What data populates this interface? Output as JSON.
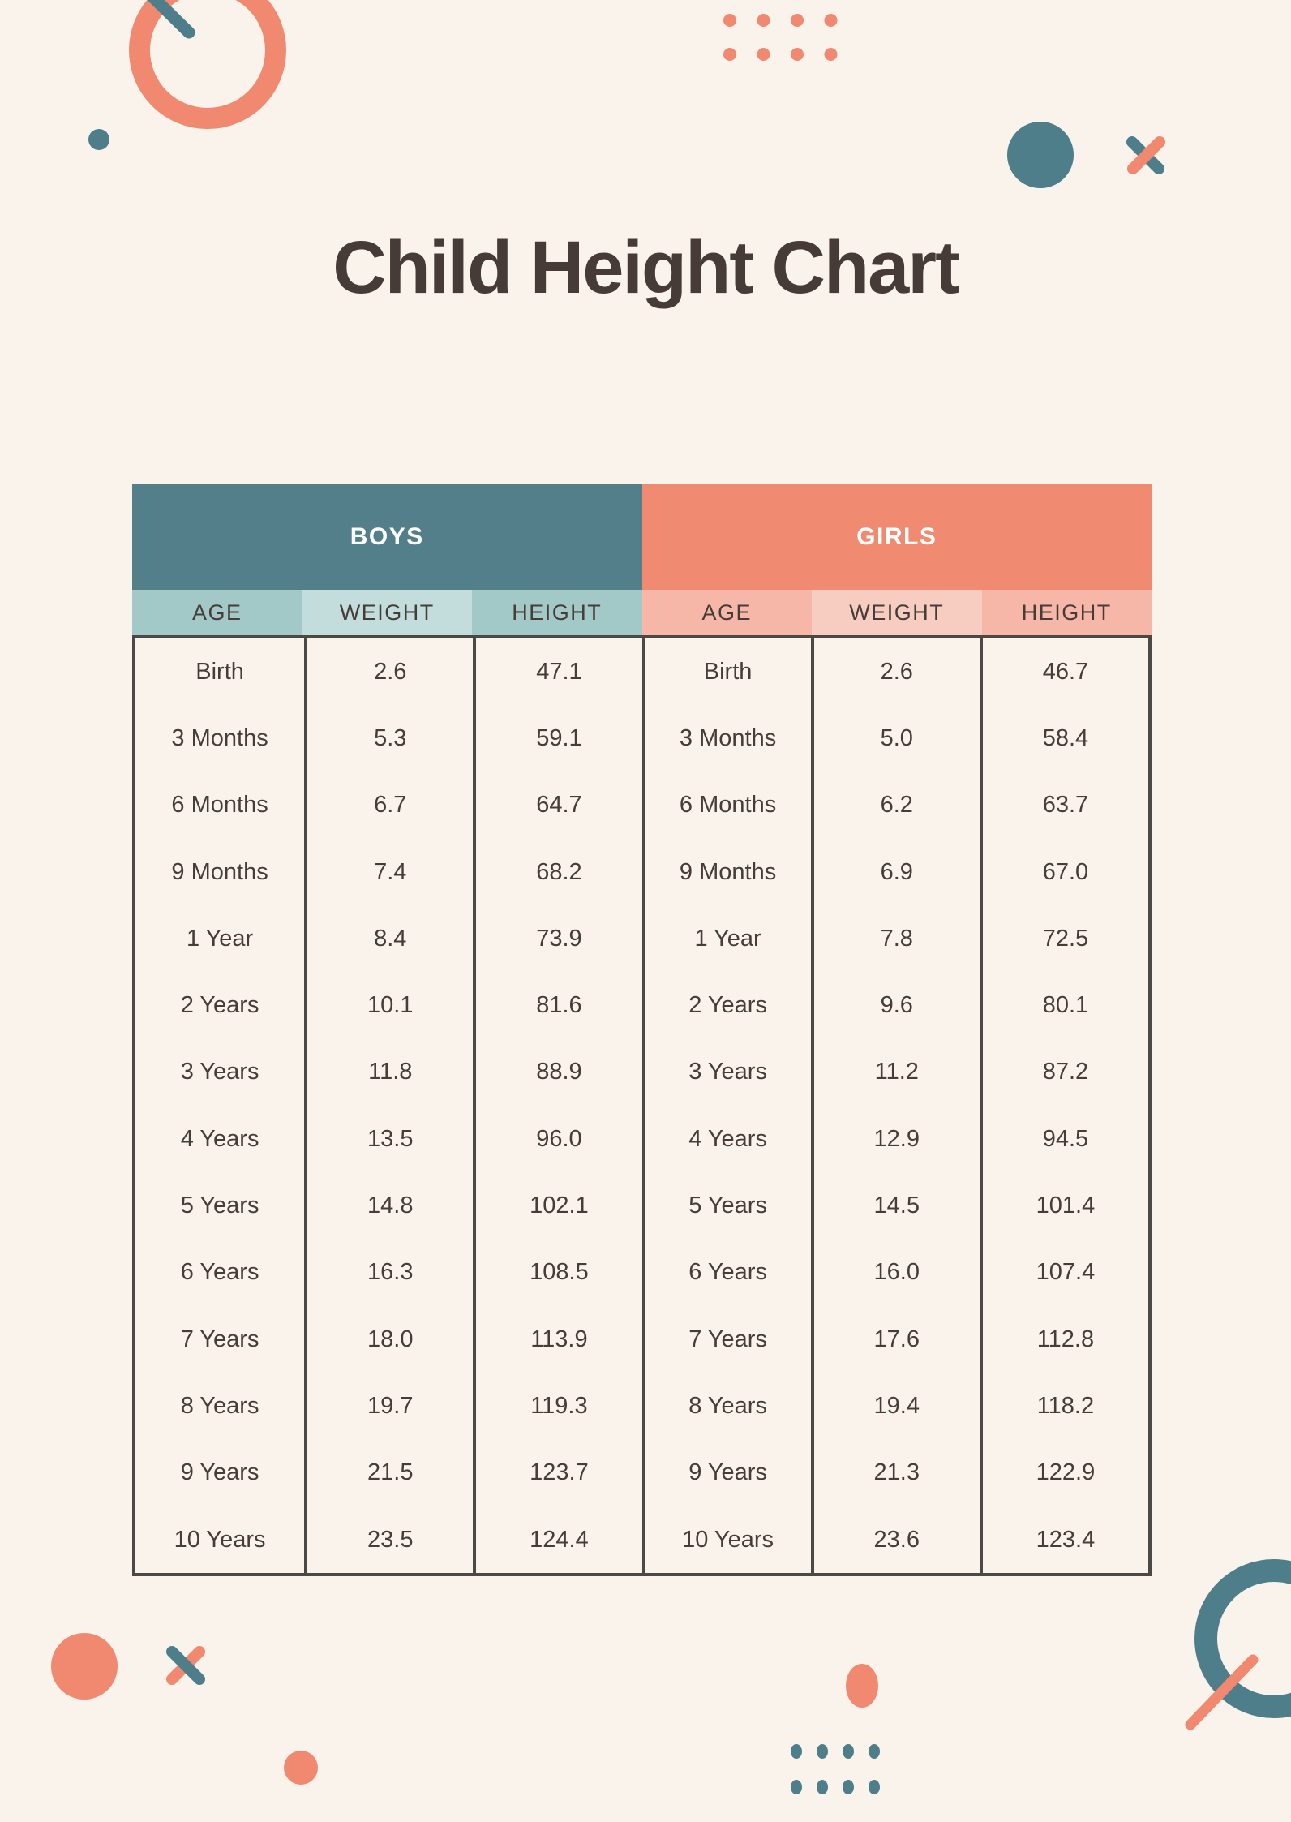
{
  "page_title": "Child Height Chart",
  "chart_data": {
    "type": "table",
    "title": "Child Height Chart",
    "groups": [
      "BOYS",
      "GIRLS"
    ],
    "columns": [
      "AGE",
      "WEIGHT",
      "HEIGHT"
    ],
    "boys_rows": [
      [
        "Birth",
        "2.6",
        "47.1"
      ],
      [
        "3 Months",
        "5.3",
        "59.1"
      ],
      [
        "6 Months",
        "6.7",
        "64.7"
      ],
      [
        "9 Months",
        "7.4",
        "68.2"
      ],
      [
        "1 Year",
        "8.4",
        "73.9"
      ],
      [
        "2 Years",
        "10.1",
        "81.6"
      ],
      [
        "3 Years",
        "11.8",
        "88.9"
      ],
      [
        "4 Years",
        "13.5",
        "96.0"
      ],
      [
        "5 Years",
        "14.8",
        "102.1"
      ],
      [
        "6 Years",
        "16.3",
        "108.5"
      ],
      [
        "7 Years",
        "18.0",
        "113.9"
      ],
      [
        "8 Years",
        "19.7",
        "119.3"
      ],
      [
        "9 Years",
        "21.5",
        "123.7"
      ],
      [
        "10 Years",
        "23.5",
        "124.4"
      ]
    ],
    "girls_rows": [
      [
        "Birth",
        "2.6",
        "46.7"
      ],
      [
        "3 Months",
        "5.0",
        "58.4"
      ],
      [
        "6 Months",
        "6.2",
        "63.7"
      ],
      [
        "9 Months",
        "6.9",
        "67.0"
      ],
      [
        "1 Year",
        "7.8",
        "72.5"
      ],
      [
        "2 Years",
        "9.6",
        "80.1"
      ],
      [
        "3 Years",
        "11.2",
        "87.2"
      ],
      [
        "4 Years",
        "12.9",
        "94.5"
      ],
      [
        "5 Years",
        "14.5",
        "101.4"
      ],
      [
        "6 Years",
        "16.0",
        "107.4"
      ],
      [
        "7 Years",
        "17.6",
        "112.8"
      ],
      [
        "8 Years",
        "19.4",
        "118.2"
      ],
      [
        "9 Years",
        "21.3",
        "122.9"
      ],
      [
        "10 Years",
        "23.6",
        "123.4"
      ]
    ]
  },
  "colors": {
    "background": "#f9f3ec",
    "title_text": "#473b38",
    "teal": "#527f8a",
    "coral": "#f08a70",
    "teal_deco": "#4d7e89",
    "teal_light": "#a3c8c8",
    "teal_lighter": "#c2dddc",
    "coral_light": "#f6b7a8",
    "coral_lighter": "#f8cdc1",
    "table_border": "#4b4946",
    "body_text": "#483c38"
  },
  "decorations": [
    "ring-top-left",
    "diagonal-line-top-left",
    "dot-top-left",
    "dots-grid-top",
    "circle-top-right",
    "x-mark-top-right",
    "circle-bottom-left",
    "x-mark-bottom-left",
    "dot-bottom-left",
    "oval-bottom-center",
    "dots-grid-bottom",
    "ring-bottom-right",
    "diagonal-line-bottom-right"
  ]
}
